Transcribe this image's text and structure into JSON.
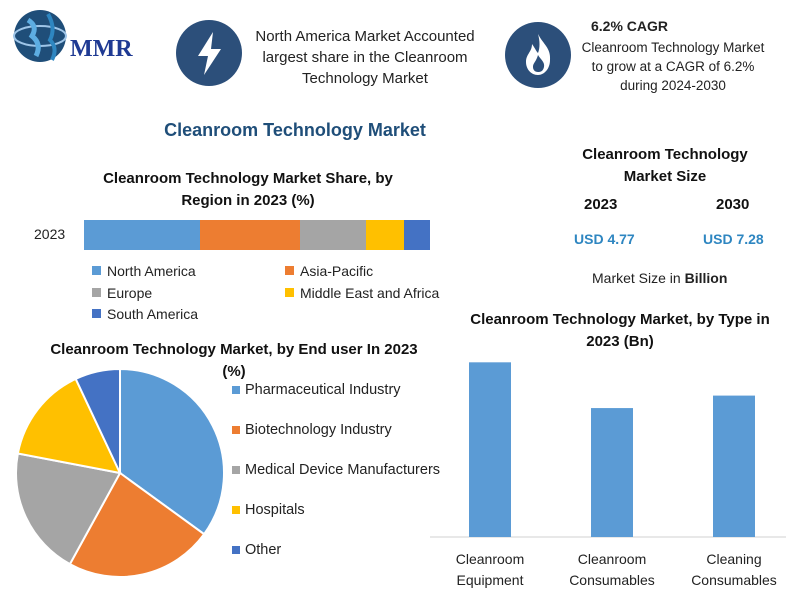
{
  "brand": {
    "logo_text": "MMR"
  },
  "colors": {
    "north_america": "#5b9bd5",
    "asia_pacific": "#ed7d31",
    "europe": "#a5a5a5",
    "mea": "#ffc000",
    "south_america": "#4472c4",
    "icon_bg": "#2c4f7a",
    "title_blue": "#1f4e79",
    "value_blue": "#2e86c1"
  },
  "header": {
    "north_america_text": "North America Market Accounted largest share in the Cleanroom Technology Market",
    "north_america_icon": "lightning-bolt-icon",
    "cagr_title": "6.2% CAGR",
    "cagr_text": "Cleanroom Technology Market to grow at a CAGR of 6.2% during 2024-2030",
    "cagr_icon": "flame-icon"
  },
  "main_title": "Cleanroom Technology Market",
  "size_panel": {
    "title": "Cleanroom Technology Market Size",
    "year_2023": "2023",
    "year_2030": "2030",
    "value_2023": "USD 4.77",
    "value_2030": "USD 7.28",
    "note_prefix": "Market Size in ",
    "note_unit": "Billion"
  },
  "chart_data": [
    {
      "type": "bar",
      "orientation": "horizontal-stacked",
      "title": "Cleanroom Technology Market Share, by Region in 2023 (%)",
      "categories": [
        "2023"
      ],
      "series": [
        {
          "name": "North America",
          "values": [
            33.5
          ]
        },
        {
          "name": "Asia-Pacific",
          "values": [
            29
          ]
        },
        {
          "name": "Europe",
          "values": [
            19
          ]
        },
        {
          "name": "Middle East and Africa",
          "values": [
            11
          ]
        },
        {
          "name": "South America",
          "values": [
            7.5
          ]
        }
      ],
      "legend": "bottom"
    },
    {
      "type": "pie",
      "title": "Cleanroom Technology Market, by End user In 2023 (%)",
      "labels": [
        "Pharmaceutical Industry",
        "Biotechnology Industry",
        "Medical Device Manufacturers",
        "Hospitals",
        "Other"
      ],
      "values": [
        35,
        23,
        20,
        15,
        7
      ],
      "legend": "right"
    },
    {
      "type": "bar",
      "title": "Cleanroom Technology Market, by Type in 2023 (Bn)",
      "categories": [
        "Cleanroom Equipment",
        "Cleanroom Consumables",
        "Cleaning Consumables"
      ],
      "values": [
        2.1,
        1.55,
        1.7
      ],
      "ylim": [
        0,
        2.2
      ],
      "grid": false
    }
  ]
}
